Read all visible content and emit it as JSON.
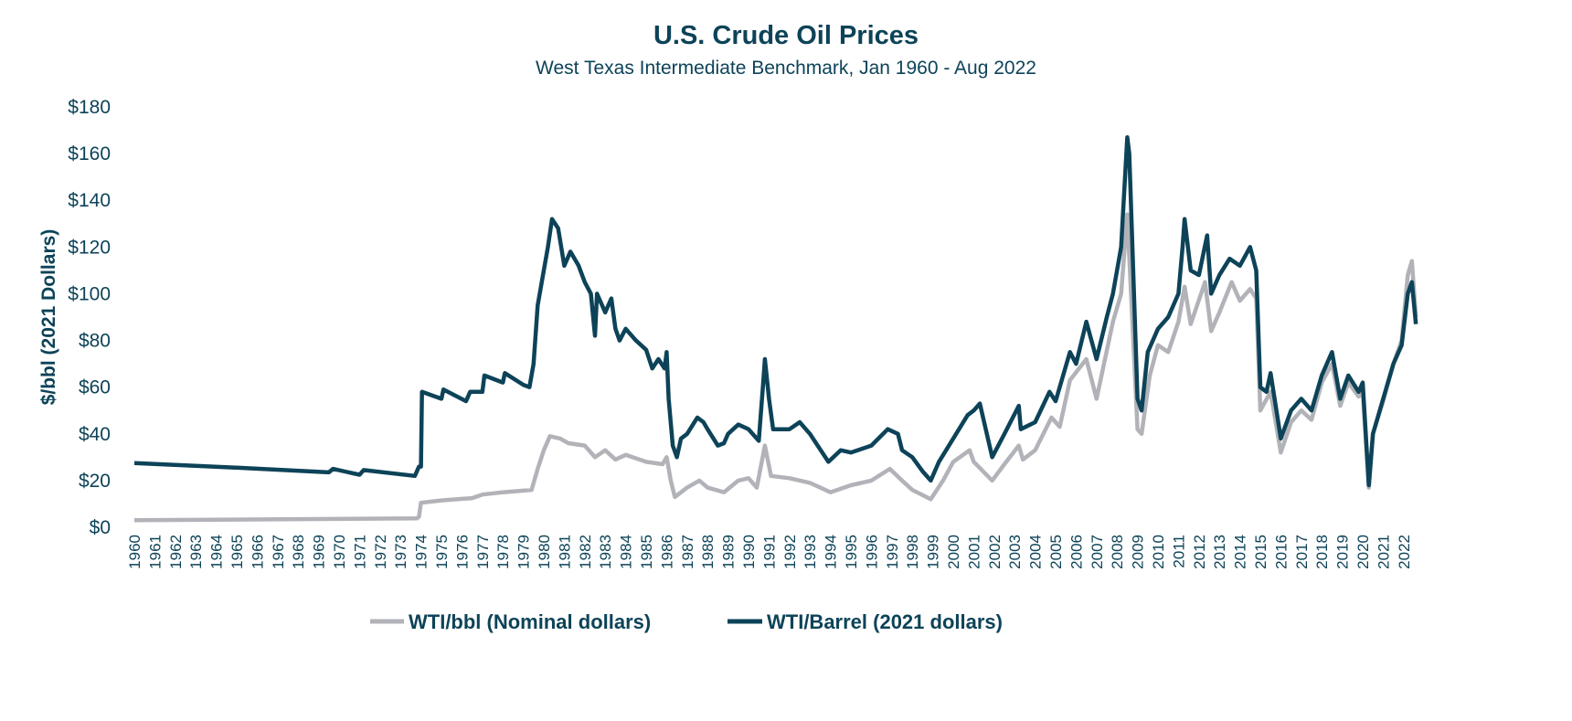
{
  "chart_data": {
    "type": "line",
    "title": "U.S. Crude Oil Prices",
    "subtitle": "West Texas Intermediate Benchmark, Jan 1960 - Aug 2022",
    "xlabel": "",
    "ylabel": "$/bbl (2021 Dollars)",
    "xlim": [
      1960,
      2022.7
    ],
    "ylim": [
      0,
      180
    ],
    "yticks": [
      "$0",
      "$20",
      "$40",
      "$60",
      "$80",
      "$100",
      "$120",
      "$140",
      "$160",
      "$180"
    ],
    "xticks": [
      "1960",
      "1961",
      "1962",
      "1963",
      "1964",
      "1965",
      "1966",
      "1967",
      "1968",
      "1969",
      "1970",
      "1971",
      "1972",
      "1973",
      "1974",
      "1975",
      "1976",
      "1977",
      "1978",
      "1979",
      "1980",
      "1981",
      "1982",
      "1983",
      "1984",
      "1985",
      "1986",
      "1987",
      "1988",
      "1989",
      "1990",
      "1991",
      "1992",
      "1993",
      "1994",
      "1995",
      "1996",
      "1997",
      "1998",
      "1999",
      "2000",
      "2001",
      "2002",
      "2003",
      "2004",
      "2005",
      "2006",
      "2007",
      "2008",
      "2009",
      "2010",
      "2011",
      "2012",
      "2013",
      "2014",
      "2015",
      "2016",
      "2017",
      "2018",
      "2019",
      "2020",
      "2021",
      "2022"
    ],
    "grid": false,
    "legend_position": "bottom",
    "series": [
      {
        "name": "WTI/bbl (Nominal dollars)",
        "color": "#b2b3b9",
        "points": [
          [
            1960,
            3
          ],
          [
            1973.8,
            3.8
          ],
          [
            1973.9,
            4.5
          ],
          [
            1974.0,
            10.5
          ],
          [
            1975,
            11.5
          ],
          [
            1976.5,
            12.5
          ],
          [
            1977,
            14
          ],
          [
            1978,
            15
          ],
          [
            1979.4,
            16
          ],
          [
            1979.7,
            25
          ],
          [
            1980,
            33
          ],
          [
            1980.3,
            39
          ],
          [
            1980.8,
            38
          ],
          [
            1981.2,
            36
          ],
          [
            1982,
            35
          ],
          [
            1982.5,
            30
          ],
          [
            1983,
            33
          ],
          [
            1983.5,
            29
          ],
          [
            1984,
            31
          ],
          [
            1985,
            28
          ],
          [
            1985.8,
            27
          ],
          [
            1986,
            30
          ],
          [
            1986.2,
            20
          ],
          [
            1986.4,
            13
          ],
          [
            1987,
            17
          ],
          [
            1987.6,
            20
          ],
          [
            1988,
            17
          ],
          [
            1988.8,
            15
          ],
          [
            1989.5,
            20
          ],
          [
            1990,
            21
          ],
          [
            1990.4,
            17
          ],
          [
            1990.8,
            35
          ],
          [
            1991.1,
            22
          ],
          [
            1992,
            21
          ],
          [
            1993,
            19
          ],
          [
            1994,
            15
          ],
          [
            1995,
            18
          ],
          [
            1996,
            20
          ],
          [
            1996.9,
            25
          ],
          [
            1997.5,
            20
          ],
          [
            1998,
            16
          ],
          [
            1998.9,
            12
          ],
          [
            1999.5,
            20
          ],
          [
            2000,
            28
          ],
          [
            2000.8,
            33
          ],
          [
            2001,
            28
          ],
          [
            2001.9,
            20
          ],
          [
            2002.5,
            27
          ],
          [
            2003.2,
            35
          ],
          [
            2003.4,
            29
          ],
          [
            2004,
            33
          ],
          [
            2004.8,
            47
          ],
          [
            2005.2,
            43
          ],
          [
            2005.7,
            63
          ],
          [
            2006.5,
            72
          ],
          [
            2007,
            55
          ],
          [
            2007.8,
            88
          ],
          [
            2008.2,
            100
          ],
          [
            2008.5,
            134
          ],
          [
            2009,
            42
          ],
          [
            2009.2,
            40
          ],
          [
            2009.6,
            65
          ],
          [
            2010,
            78
          ],
          [
            2010.5,
            75
          ],
          [
            2011,
            88
          ],
          [
            2011.3,
            103
          ],
          [
            2011.6,
            87
          ],
          [
            2012.3,
            105
          ],
          [
            2012.6,
            84
          ],
          [
            2013,
            92
          ],
          [
            2013.6,
            105
          ],
          [
            2014,
            97
          ],
          [
            2014.5,
            102
          ],
          [
            2014.8,
            98
          ],
          [
            2015,
            50
          ],
          [
            2015.5,
            58
          ],
          [
            2016,
            32
          ],
          [
            2016.5,
            45
          ],
          [
            2017,
            50
          ],
          [
            2017.5,
            46
          ],
          [
            2018,
            62
          ],
          [
            2018.5,
            70
          ],
          [
            2018.9,
            52
          ],
          [
            2019.3,
            62
          ],
          [
            2019.8,
            56
          ],
          [
            2020,
            58
          ],
          [
            2020.3,
            17
          ],
          [
            2020.5,
            40
          ],
          [
            2021,
            54
          ],
          [
            2021.5,
            70
          ],
          [
            2021.9,
            80
          ],
          [
            2022.2,
            108
          ],
          [
            2022.4,
            114
          ],
          [
            2022.6,
            90
          ]
        ]
      },
      {
        "name": "WTI/Barrel (2021 dollars)",
        "color": "#0d4358",
        "points": [
          [
            1960,
            27.5
          ],
          [
            1965,
            25.5
          ],
          [
            1969.5,
            23.5
          ],
          [
            1969.7,
            25
          ],
          [
            1971,
            22.5
          ],
          [
            1971.2,
            24.5
          ],
          [
            1973.7,
            22
          ],
          [
            1973.9,
            26
          ],
          [
            1974.0,
            26
          ],
          [
            1974.05,
            58
          ],
          [
            1975,
            55
          ],
          [
            1975.1,
            59
          ],
          [
            1976.2,
            54
          ],
          [
            1976.4,
            58
          ],
          [
            1977,
            58
          ],
          [
            1977.1,
            65
          ],
          [
            1978.0,
            62
          ],
          [
            1978.1,
            66
          ],
          [
            1979,
            61
          ],
          [
            1979.3,
            60
          ],
          [
            1979.5,
            70
          ],
          [
            1979.7,
            95
          ],
          [
            1980.0,
            110
          ],
          [
            1980.2,
            120
          ],
          [
            1980.4,
            132
          ],
          [
            1980.7,
            128
          ],
          [
            1981,
            112
          ],
          [
            1981.3,
            118
          ],
          [
            1981.7,
            112
          ],
          [
            1982,
            105
          ],
          [
            1982.3,
            100
          ],
          [
            1982.5,
            82
          ],
          [
            1982.6,
            100
          ],
          [
            1983,
            92
          ],
          [
            1983.3,
            98
          ],
          [
            1983.5,
            85
          ],
          [
            1983.7,
            80
          ],
          [
            1984,
            85
          ],
          [
            1984.5,
            80
          ],
          [
            1985,
            76
          ],
          [
            1985.3,
            68
          ],
          [
            1985.6,
            72
          ],
          [
            1985.9,
            68
          ],
          [
            1986,
            75
          ],
          [
            1986.1,
            55
          ],
          [
            1986.3,
            35
          ],
          [
            1986.5,
            30
          ],
          [
            1986.7,
            38
          ],
          [
            1987,
            40
          ],
          [
            1987.5,
            47
          ],
          [
            1987.8,
            45
          ],
          [
            1988,
            42
          ],
          [
            1988.5,
            35
          ],
          [
            1988.8,
            36
          ],
          [
            1989,
            40
          ],
          [
            1989.5,
            44
          ],
          [
            1990,
            42
          ],
          [
            1990.5,
            37
          ],
          [
            1990.7,
            60
          ],
          [
            1990.8,
            72
          ],
          [
            1991,
            55
          ],
          [
            1991.2,
            42
          ],
          [
            1992,
            42
          ],
          [
            1992.5,
            45
          ],
          [
            1993,
            40
          ],
          [
            1993.9,
            28
          ],
          [
            1994.5,
            33
          ],
          [
            1995,
            32
          ],
          [
            1996,
            35
          ],
          [
            1996.8,
            42
          ],
          [
            1997.3,
            40
          ],
          [
            1997.5,
            33
          ],
          [
            1998,
            30
          ],
          [
            1998.5,
            24
          ],
          [
            1998.9,
            20
          ],
          [
            1999.3,
            28
          ],
          [
            2000,
            38
          ],
          [
            2000.7,
            48
          ],
          [
            2001,
            50
          ],
          [
            2001.3,
            53
          ],
          [
            2001.9,
            30
          ],
          [
            2002.5,
            40
          ],
          [
            2003.2,
            52
          ],
          [
            2003.3,
            42
          ],
          [
            2004,
            45
          ],
          [
            2004.7,
            58
          ],
          [
            2005,
            54
          ],
          [
            2005.7,
            75
          ],
          [
            2006,
            70
          ],
          [
            2006.5,
            88
          ],
          [
            2007,
            72
          ],
          [
            2007.5,
            90
          ],
          [
            2007.8,
            100
          ],
          [
            2008,
            110
          ],
          [
            2008.2,
            120
          ],
          [
            2008.5,
            167
          ],
          [
            2008.6,
            160
          ],
          [
            2009,
            55
          ],
          [
            2009.2,
            50
          ],
          [
            2009.5,
            75
          ],
          [
            2010,
            85
          ],
          [
            2010.5,
            90
          ],
          [
            2011,
            100
          ],
          [
            2011.2,
            120
          ],
          [
            2011.3,
            132
          ],
          [
            2011.6,
            110
          ],
          [
            2012,
            108
          ],
          [
            2012.4,
            125
          ],
          [
            2012.6,
            100
          ],
          [
            2013,
            108
          ],
          [
            2013.5,
            115
          ],
          [
            2014,
            112
          ],
          [
            2014.5,
            120
          ],
          [
            2014.8,
            110
          ],
          [
            2015,
            60
          ],
          [
            2015.3,
            58
          ],
          [
            2015.5,
            66
          ],
          [
            2016,
            38
          ],
          [
            2016.5,
            50
          ],
          [
            2017,
            55
          ],
          [
            2017.5,
            50
          ],
          [
            2018,
            65
          ],
          [
            2018.5,
            75
          ],
          [
            2018.9,
            55
          ],
          [
            2019.3,
            65
          ],
          [
            2019.8,
            58
          ],
          [
            2020,
            62
          ],
          [
            2020.3,
            18
          ],
          [
            2020.5,
            40
          ],
          [
            2021,
            55
          ],
          [
            2021.5,
            70
          ],
          [
            2021.9,
            78
          ],
          [
            2022.2,
            100
          ],
          [
            2022.4,
            105
          ],
          [
            2022.6,
            87
          ]
        ]
      }
    ]
  }
}
